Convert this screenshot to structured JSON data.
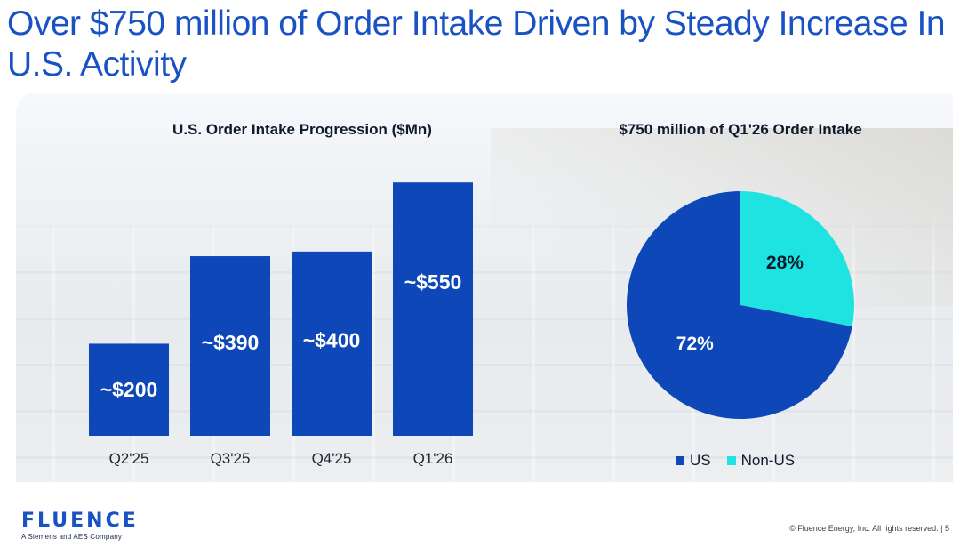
{
  "slide": {
    "title": "Over $750 million of Order Intake Driven by Steady Increase In U.S. Activity",
    "footer": "© Fluence Energy, Inc. All rights reserved.  |  5",
    "logo_text": "FLUENCE",
    "logo_sub": "A Siemens and AES Company",
    "colors": {
      "title": "#1a52c4",
      "bar": "#0d47b8",
      "us": "#0d47b8",
      "non_us": "#1ee3e0"
    }
  },
  "chart_data": [
    {
      "type": "bar",
      "title": "U.S. Order Intake Progression ($Mn)",
      "categories": [
        "Q2'25",
        "Q3'25",
        "Q4'25",
        "Q1'26"
      ],
      "values": [
        200,
        390,
        400,
        550
      ],
      "data_labels": [
        "~$200",
        "~$390",
        "~$400",
        "~$550"
      ],
      "xlabel": "",
      "ylabel": "",
      "ylim": [
        0,
        560
      ],
      "grid": false
    },
    {
      "type": "pie",
      "title": "$750 million of Q1'26 Order Intake",
      "labels": [
        "US",
        "Non-US"
      ],
      "values": [
        72,
        28
      ],
      "data_labels": [
        "72%",
        "28%"
      ],
      "legend": "bottom"
    }
  ]
}
